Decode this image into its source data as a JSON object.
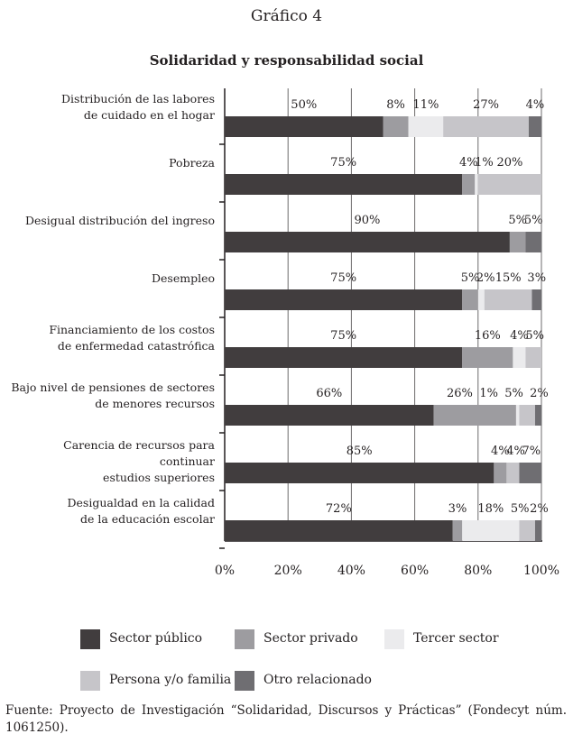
{
  "title": "Gráfico 4",
  "subtitle": "Solidaridad y responsabilidad social",
  "source": "Fuente: Proyecto de Investigación “Solidaridad, Discursos y Prácticas” (Fondecyt núm. 1061250).",
  "chart_data": {
    "type": "bar",
    "orientation": "horizontal-stacked",
    "categories": [
      [
        "Distribución de las labores",
        "de cuidado en el hogar"
      ],
      [
        "Pobreza"
      ],
      [
        "Desigual distribución del ingreso"
      ],
      [
        "Desempleo"
      ],
      [
        "Financiamiento de los costos",
        "de enfermedad catastrófica"
      ],
      [
        "Bajo nivel de pensiones de sectores",
        "de menores recursos"
      ],
      [
        "Carencia de recursos para continuar",
        "estudios superiores"
      ],
      [
        "Desigualdad en la calidad",
        "de la educación escolar"
      ]
    ],
    "series": [
      {
        "name": "Sector público",
        "color": "#413d3e",
        "values": [
          50,
          75,
          90,
          75,
          75,
          66,
          85,
          72
        ]
      },
      {
        "name": "Sector privado",
        "color": "#9d9ca0",
        "values": [
          8,
          4,
          5,
          5,
          16,
          26,
          4,
          3
        ]
      },
      {
        "name": "Tercer sector",
        "color": "#ebebed",
        "values": [
          11,
          1,
          0,
          2,
          4,
          1,
          0,
          18
        ]
      },
      {
        "name": "Persona y/o familia",
        "color": "#c6c5c9",
        "values": [
          27,
          20,
          0,
          15,
          5,
          5,
          4,
          5
        ]
      },
      {
        "name": "Otro relacionado",
        "color": "#6f6e72",
        "values": [
          4,
          0,
          5,
          3,
          0,
          2,
          7,
          2
        ]
      }
    ],
    "xticks": [
      "0%",
      "20%",
      "40%",
      "60%",
      "80%",
      "100%"
    ],
    "xlim": [
      0,
      100
    ],
    "grid": true,
    "legend": "bottom"
  }
}
